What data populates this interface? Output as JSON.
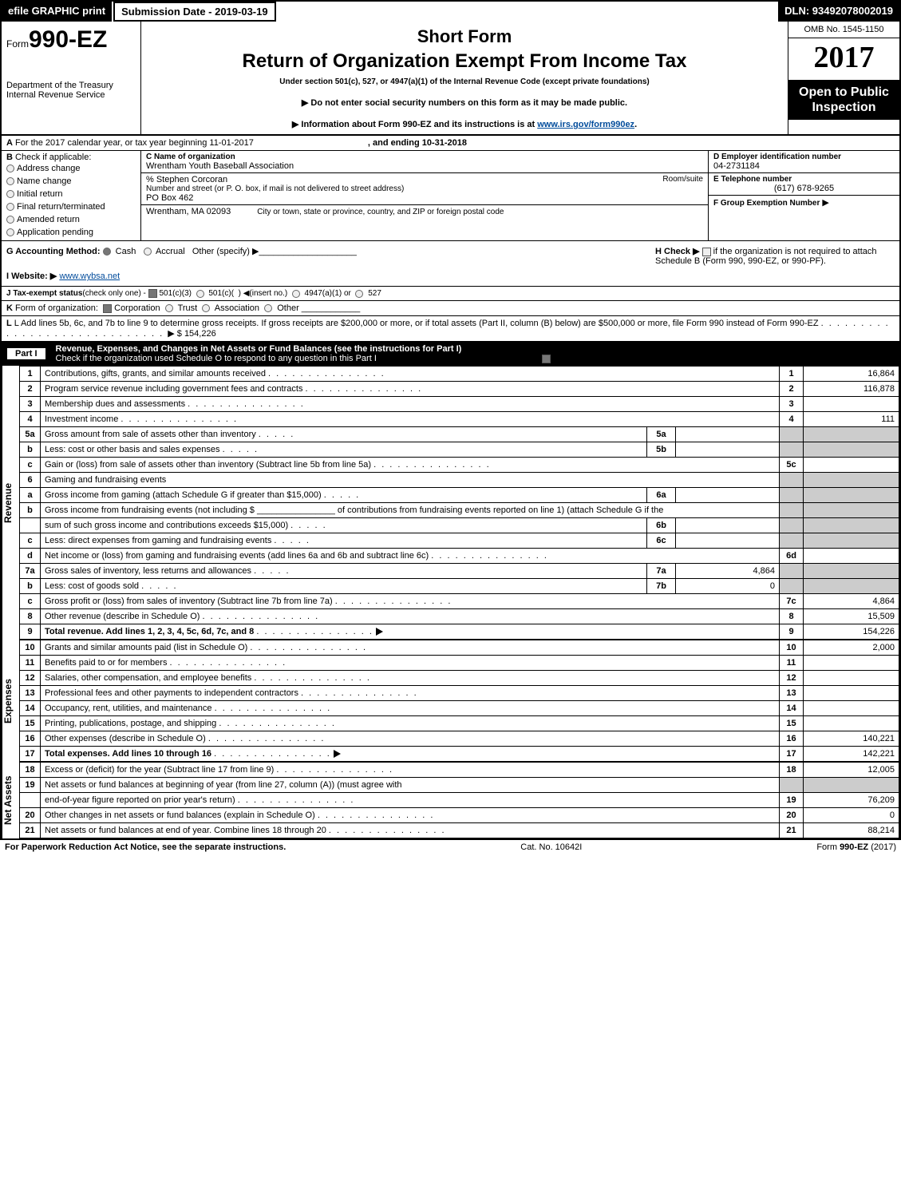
{
  "topbar": {
    "efile": "efile GRAPHIC print",
    "submission": "Submission Date - 2019-03-19",
    "dln": "DLN: 93492078002019"
  },
  "header": {
    "form_prefix": "Form",
    "form_no": "990-EZ",
    "dept": "Department of the Treasury\nInternal Revenue Service",
    "short": "Short Form",
    "return_title": "Return of Organization Exempt From Income Tax",
    "under": "Under section 501(c), 527, or 4947(a)(1) of the Internal Revenue Code (except private foundations)",
    "l1": "▶ Do not enter social security numbers on this form as it may be made public.",
    "l2_pre": "▶ Information about Form 990-EZ and its instructions is at ",
    "l2_link": "www.irs.gov/form990ez",
    "l2_post": ".",
    "omb": "OMB No. 1545-1150",
    "year": "2017",
    "open": "Open to Public Inspection"
  },
  "rowA": {
    "a_label": "A",
    "a_text": "For the 2017 calendar year, or tax year beginning 11-01-2017",
    "a_end": ", and ending 10-31-2018"
  },
  "col_left": {
    "b_label": "B",
    "b_text": "Check if applicable:",
    "items": [
      "Address change",
      "Name change",
      "Initial return",
      "Final return/terminated",
      "Amended return",
      "Application pending"
    ]
  },
  "col_mid": {
    "c_label": "C Name of organization",
    "c_val": "Wrentham Youth Baseball Association",
    "care": "% Stephen Corcoran",
    "addr_label": "Number and street (or P. O. box, if mail is not delivered to street address)",
    "room": "Room/suite",
    "addr": "PO Box 462",
    "city_label": "City or town, state or province, country, and ZIP or foreign postal code",
    "city": "Wrentham, MA  02093"
  },
  "col_right": {
    "d_label": "D Employer identification number",
    "d_val": "04-2731184",
    "e_label": "E Telephone number",
    "e_val": "(617) 678-9265",
    "f_label": "F Group Exemption Number",
    "f_arrow": "▶"
  },
  "secG": {
    "g": "G Accounting Method:",
    "opts": [
      "Cash",
      "Accrual",
      "Other (specify) ▶"
    ],
    "i": "I Website: ▶",
    "i_link": "www.wybsa.net",
    "h": "H  Check ▶",
    "h_text": " if the organization is not required to attach Schedule B (Form 990, 990-EZ, or 990-PF)."
  },
  "rowJ": "J Tax-exempt status(check only one) -   501(c)(3)    501(c)(  ) ◀(insert no.)    4947(a)(1) or    527",
  "rowK": "K Form of organization:     Corporation     Trust     Association     Other",
  "rowL_pre": "L Add lines 5b, 6c, and 7b to line 9 to determine gross receipts. If gross receipts are $200,000 or more, or if total assets (Part II, column (B) below) are $500,000 or more, file Form 990 instead of Form 990-EZ",
  "rowL_amt": "▶ $ 154,226",
  "part1": {
    "label": "Part I",
    "title": "Revenue, Expenses, and Changes in Net Assets or Fund Balances (see the instructions for Part I)",
    "sub": "Check if the organization used Schedule O to respond to any question in this Part I"
  },
  "sections": {
    "revenue_label": "Revenue",
    "expenses_label": "Expenses",
    "net_label": "Net Assets"
  },
  "lines": [
    {
      "n": "1",
      "d": "Contributions, gifts, grants, and similar amounts received",
      "nn": "1",
      "amt": "16,864"
    },
    {
      "n": "2",
      "d": "Program service revenue including government fees and contracts",
      "nn": "2",
      "amt": "116,878"
    },
    {
      "n": "3",
      "d": "Membership dues and assessments",
      "nn": "3",
      "amt": ""
    },
    {
      "n": "4",
      "d": "Investment income",
      "nn": "4",
      "amt": "111"
    },
    {
      "n": "5a",
      "d": "Gross amount from sale of assets other than inventory",
      "sub": "5a",
      "subv": "",
      "grey": true
    },
    {
      "n": "b",
      "d": "Less: cost or other basis and sales expenses",
      "sub": "5b",
      "subv": "",
      "grey": true
    },
    {
      "n": "c",
      "d": "Gain or (loss) from sale of assets other than inventory (Subtract line 5b from line 5a)",
      "nn": "5c",
      "amt": ""
    },
    {
      "n": "6",
      "d": "Gaming and fundraising events",
      "grey": true
    },
    {
      "n": "a",
      "d": "Gross income from gaming (attach Schedule G if greater than $15,000)",
      "sub": "6a",
      "subv": "",
      "grey": true
    },
    {
      "n": "b",
      "d": "Gross income from fundraising events (not including $ ________________ of contributions from fundraising events reported on line 1) (attach Schedule G if the",
      "grey": true
    },
    {
      "n": "",
      "d": "sum of such gross income and contributions exceeds $15,000)",
      "sub": "6b",
      "subv": "",
      "grey": true
    },
    {
      "n": "c",
      "d": "Less: direct expenses from gaming and fundraising events",
      "sub": "6c",
      "subv": "",
      "grey": true
    },
    {
      "n": "d",
      "d": "Net income or (loss) from gaming and fundraising events (add lines 6a and 6b and subtract line 6c)",
      "nn": "6d",
      "amt": ""
    },
    {
      "n": "7a",
      "d": "Gross sales of inventory, less returns and allowances",
      "sub": "7a",
      "subv": "4,864",
      "grey": true
    },
    {
      "n": "b",
      "d": "Less: cost of goods sold",
      "sub": "7b",
      "subv": "0",
      "grey": true
    },
    {
      "n": "c",
      "d": "Gross profit or (loss) from sales of inventory (Subtract line 7b from line 7a)",
      "nn": "7c",
      "amt": "4,864"
    },
    {
      "n": "8",
      "d": "Other revenue (describe in Schedule O)",
      "nn": "8",
      "amt": "15,509"
    },
    {
      "n": "9",
      "d": "Total revenue. Add lines 1, 2, 3, 4, 5c, 6d, 7c, and 8",
      "nn": "9",
      "amt": "154,226",
      "bold": true,
      "arrow": true
    }
  ],
  "expenses": [
    {
      "n": "10",
      "d": "Grants and similar amounts paid (list in Schedule O)",
      "nn": "10",
      "amt": "2,000"
    },
    {
      "n": "11",
      "d": "Benefits paid to or for members",
      "nn": "11",
      "amt": ""
    },
    {
      "n": "12",
      "d": "Salaries, other compensation, and employee benefits",
      "nn": "12",
      "amt": ""
    },
    {
      "n": "13",
      "d": "Professional fees and other payments to independent contractors",
      "nn": "13",
      "amt": ""
    },
    {
      "n": "14",
      "d": "Occupancy, rent, utilities, and maintenance",
      "nn": "14",
      "amt": ""
    },
    {
      "n": "15",
      "d": "Printing, publications, postage, and shipping",
      "nn": "15",
      "amt": ""
    },
    {
      "n": "16",
      "d": "Other expenses (describe in Schedule O)",
      "nn": "16",
      "amt": "140,221"
    },
    {
      "n": "17",
      "d": "Total expenses. Add lines 10 through 16",
      "nn": "17",
      "amt": "142,221",
      "bold": true,
      "arrow": true
    }
  ],
  "net": [
    {
      "n": "18",
      "d": "Excess or (deficit) for the year (Subtract line 17 from line 9)",
      "nn": "18",
      "amt": "12,005"
    },
    {
      "n": "19",
      "d": "Net assets or fund balances at beginning of year (from line 27, column (A)) (must agree with",
      "grey": true
    },
    {
      "n": "",
      "d": "end-of-year figure reported on prior year's return)",
      "nn": "19",
      "amt": "76,209"
    },
    {
      "n": "20",
      "d": "Other changes in net assets or fund balances (explain in Schedule O)",
      "nn": "20",
      "amt": "0"
    },
    {
      "n": "21",
      "d": "Net assets or fund balances at end of year. Combine lines 18 through 20",
      "nn": "21",
      "amt": "88,214"
    }
  ],
  "footer": {
    "left": "For Paperwork Reduction Act Notice, see the separate instructions.",
    "cat": "Cat. No. 10642I",
    "right": "Form 990-EZ (2017)"
  },
  "style": {
    "bg": "#ffffff",
    "border": "#000000",
    "grey_cell": "#cccccc",
    "link_color": "#004b9b",
    "font_body": 11,
    "font_form_big": 30,
    "font_year": 38,
    "font_return": 24,
    "font_short": 22,
    "font_open": 16
  }
}
